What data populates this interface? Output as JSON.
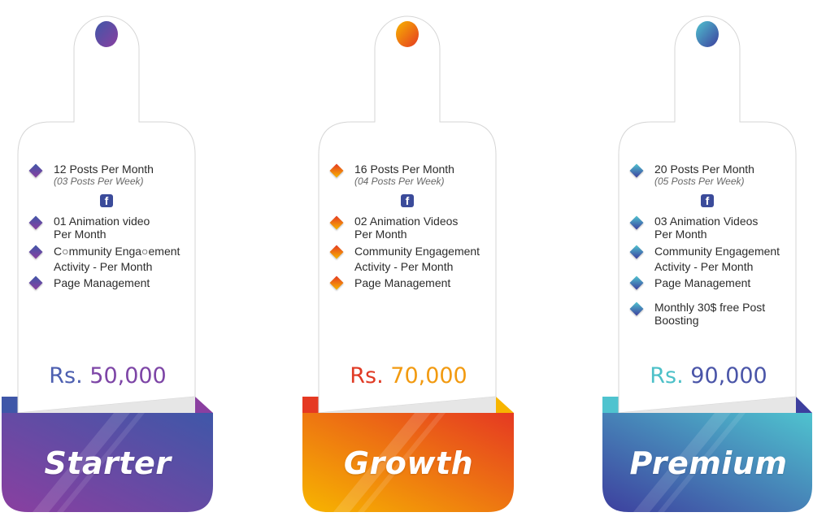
{
  "plans": [
    {
      "name": "Starter",
      "price_currency": "Rs.",
      "price_amount": "50,000",
      "colors": {
        "start": "#3f57a8",
        "end": "#8a3fa0",
        "currency": "#4d5fb0",
        "amount": "#7d45a6"
      },
      "features": [
        {
          "text": "12 Posts Per Month",
          "sub": "(03 Posts Per Week)"
        },
        {
          "text": "01 Animation video\nPer Month"
        },
        {
          "text": "C○mmunity Enga○ement\nActivity - Per Month"
        },
        {
          "text": "Page Management"
        }
      ],
      "icon": "facebook-icon"
    },
    {
      "name": "Growth",
      "price_currency": "Rs.",
      "price_amount": "70,000",
      "colors": {
        "start": "#e53922",
        "end": "#f7b500",
        "currency": "#e03a24",
        "amount": "#f29a10"
      },
      "features": [
        {
          "text": "16 Posts Per Month",
          "sub": "(04 Posts Per Week)"
        },
        {
          "text": "02 Animation Videos\nPer Month"
        },
        {
          "text": "Community Engagement\nActivity - Per Month"
        },
        {
          "text": "Page Management"
        }
      ],
      "icon": "facebook-icon"
    },
    {
      "name": "Premium",
      "price_currency": "Rs.",
      "price_amount": "90,000",
      "colors": {
        "start": "#4fc3cf",
        "end": "#3d3f9e",
        "currency": "#4cc0c8",
        "amount": "#4a55a8"
      },
      "features": [
        {
          "text": "20 Posts Per Month",
          "sub": "(05 Posts Per Week)"
        },
        {
          "text": "03 Animation Videos\nPer Month"
        },
        {
          "text": "Community Engagement\nActivity - Per Month"
        },
        {
          "text": "Page Management"
        },
        {
          "text": "Monthly 30$ free Post\nBoosting"
        }
      ],
      "icon": "facebook-icon"
    }
  ]
}
